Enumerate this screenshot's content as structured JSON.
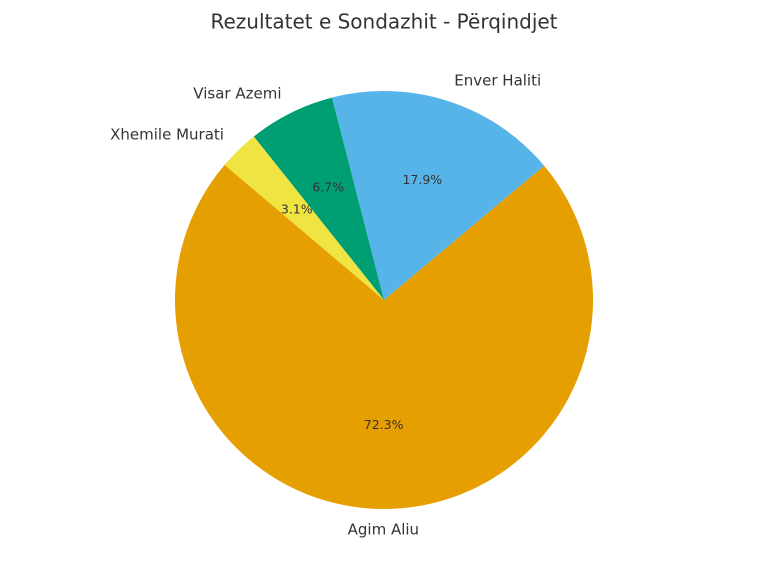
{
  "chart_data": {
    "type": "pie",
    "title": "Rezultatet e Sondazhit - Përqindjet",
    "categories": [
      "Agim Aliu",
      "Enver Haliti",
      "Visar Azemi",
      "Xhemile Murati"
    ],
    "values": [
      72.3,
      17.9,
      6.7,
      3.1
    ],
    "value_labels": [
      "72.3%",
      "17.9%",
      "6.7%",
      "3.1%"
    ],
    "colors": [
      "#E69F00",
      "#56B4E9",
      "#009E73",
      "#F0E442"
    ]
  }
}
